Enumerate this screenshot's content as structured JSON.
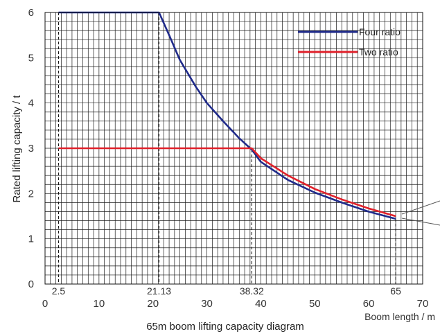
{
  "chart_data": {
    "type": "line",
    "title": "65m boom lifting capacity diagram",
    "xlabel": "Boom length / m",
    "ylabel": "Rated lifting capacity / t",
    "xlim": [
      0,
      70
    ],
    "ylim": [
      0,
      6
    ],
    "x_ticks": [
      "0",
      "10",
      "20",
      "30",
      "40",
      "50",
      "60",
      "70"
    ],
    "y_ticks": [
      "0",
      "1",
      "2",
      "3",
      "4",
      "5",
      "6"
    ],
    "grid": true,
    "legend": "top-right",
    "marked_lengths": [
      {
        "x": 2.5,
        "label": "2.5"
      },
      {
        "x": 21.13,
        "label": "21.13"
      },
      {
        "x": 38.32,
        "label": "38.32"
      },
      {
        "x": 65,
        "label": "65"
      }
    ],
    "series": [
      {
        "name": "Four ratio",
        "color": "#1f2a8a",
        "points": [
          [
            2.5,
            6
          ],
          [
            21.13,
            6
          ],
          [
            23,
            5.5
          ],
          [
            25,
            4.95
          ],
          [
            28,
            4.35
          ],
          [
            30,
            4.0
          ],
          [
            33,
            3.6
          ],
          [
            36,
            3.22
          ],
          [
            38.32,
            2.97
          ],
          [
            40,
            2.7
          ],
          [
            45,
            2.3
          ],
          [
            50,
            2.02
          ],
          [
            55,
            1.8
          ],
          [
            60,
            1.6
          ],
          [
            65,
            1.44
          ]
        ]
      },
      {
        "name": "Two ratio",
        "color": "#e0202a",
        "points": [
          [
            2.5,
            3
          ],
          [
            38.32,
            3
          ],
          [
            40,
            2.78
          ],
          [
            45,
            2.4
          ],
          [
            50,
            2.1
          ],
          [
            55,
            1.87
          ],
          [
            60,
            1.67
          ],
          [
            65,
            1.5
          ]
        ]
      }
    ]
  }
}
